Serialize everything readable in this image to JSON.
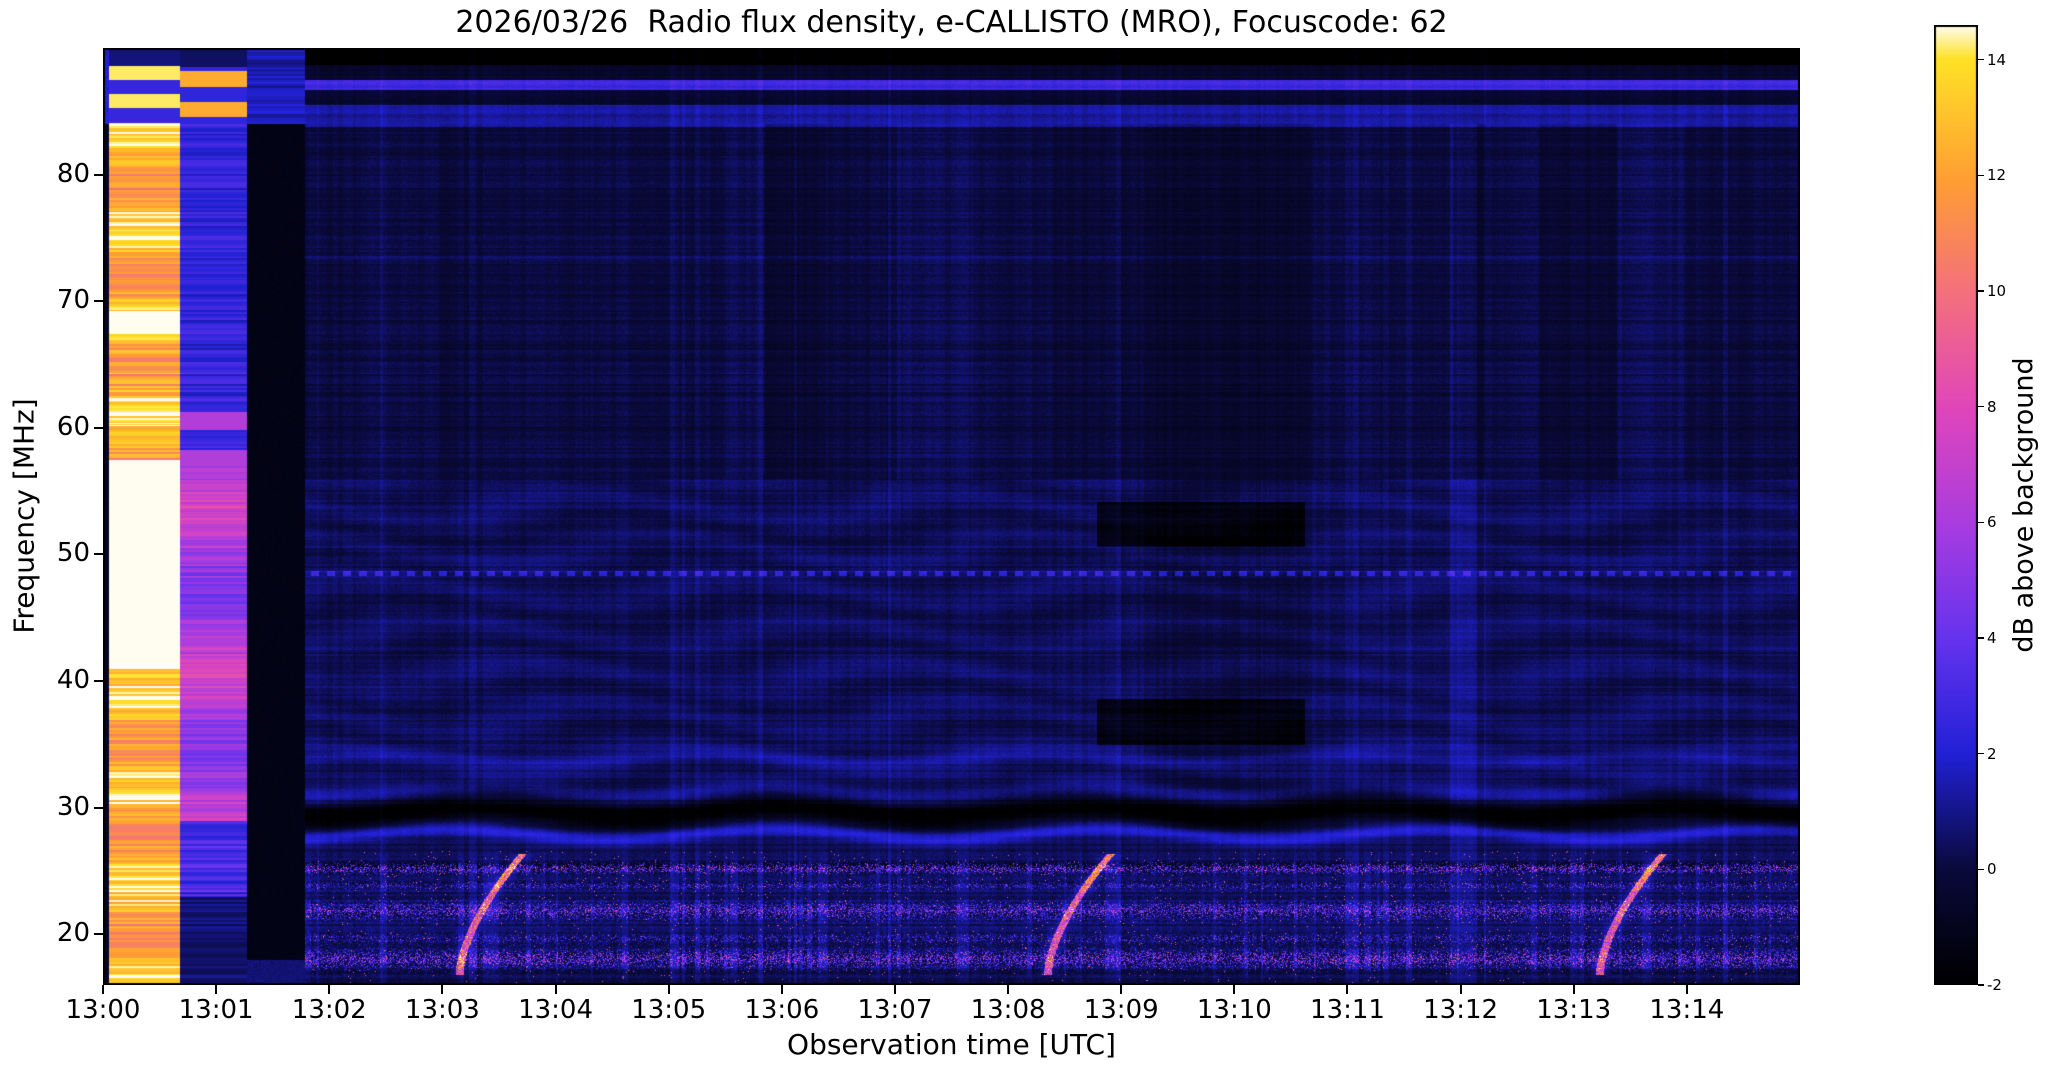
{
  "figure": {
    "title": "2026/03/26  Radio flux density, e-CALLISTO (MRO), Focuscode: 62",
    "xlabel": "Observation time [UTC]",
    "ylabel": "Frequency [MHz]",
    "colorbar_label": "dB above background"
  },
  "chart_data": {
    "type": "heatmap",
    "title": "2026/03/26  Radio flux density, e-CALLISTO (MRO), Focuscode: 62",
    "xlabel": "Observation time [UTC]",
    "ylabel": "Frequency [MHz]",
    "x_ticks": [
      "13:00",
      "13:01",
      "13:02",
      "13:03",
      "13:04",
      "13:05",
      "13:06",
      "13:07",
      "13:08",
      "13:09",
      "13:10",
      "13:11",
      "13:12",
      "13:13",
      "13:14"
    ],
    "x_range_minutes": [
      0,
      15
    ],
    "y_ticks": [
      20,
      30,
      40,
      50,
      60,
      70,
      80
    ],
    "y_range_mhz": [
      16,
      90
    ],
    "grid": false,
    "legend": "none",
    "colorbar": {
      "label": "dB above background",
      "ticks": [
        -2,
        0,
        2,
        4,
        6,
        8,
        10,
        12,
        14
      ],
      "range": [
        -2,
        14.6
      ],
      "position": "right"
    },
    "colormap_stops": [
      [
        0.0,
        "#000000"
      ],
      [
        0.12,
        "#0a0a3c"
      ],
      [
        0.24,
        "#2121d6"
      ],
      [
        0.36,
        "#6633ee"
      ],
      [
        0.48,
        "#a93ce0"
      ],
      [
        0.6,
        "#e046bb"
      ],
      [
        0.72,
        "#f4707e"
      ],
      [
        0.84,
        "#ff9f33"
      ],
      [
        0.965,
        "#ffe226"
      ],
      [
        1.0,
        "#fefdf0"
      ]
    ],
    "features": {
      "background_level_db": 0.2,
      "calibration_columns": [
        {
          "t_start_min": 0.05,
          "t_end_min": 0.68,
          "description": "saturated white/yellow calibration column with horizontal striping"
        },
        {
          "t_start_min": 0.68,
          "t_end_min": 1.27,
          "description": "magenta/pink column, blue above 57 MHz, yellow stripes above 84 MHz"
        },
        {
          "t_start_min": 1.27,
          "t_end_min": 1.78,
          "description": "blank black column, faint blue above 84 MHz"
        }
      ],
      "burst_times_min": [
        3.42,
        8.62,
        13.5
      ],
      "burst_freq_range_mhz": [
        17,
        26
      ],
      "rfi_band_max_mhz": 26.6,
      "rfi_line_freqs_mhz": [
        25.25,
        23.9,
        21.9,
        19.7,
        18.1
      ],
      "dark_wavy_band_mhz": 29.7,
      "bright_fringe_mhz": 27.95,
      "second_fringe_mhz": 33.9,
      "dotted_line_mhz": 48.55,
      "bright_line_top_mhz": 87.1,
      "faint_line_mhz": 73.45,
      "dark_patches": {
        "t_start_min": 8.78,
        "t_end_min": 10.62,
        "freq_ranges_mhz": [
          [
            35.0,
            38.6
          ],
          [
            50.6,
            54.2
          ]
        ]
      },
      "dark_column": {
        "t_start_min": 9.2,
        "t_end_min": 10.68
      },
      "bright_column_min": [
        11.9,
        12.14
      ]
    }
  }
}
